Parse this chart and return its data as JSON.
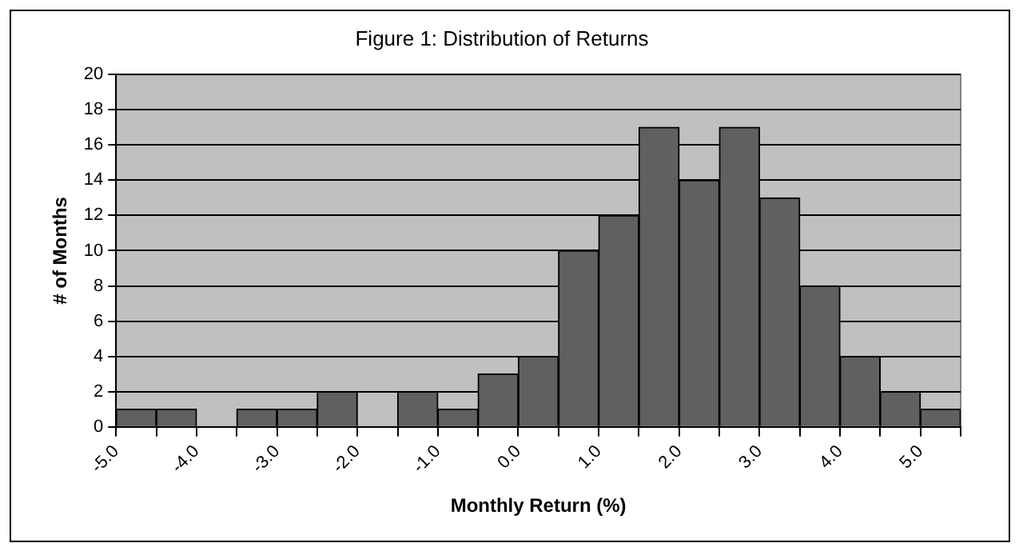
{
  "chart_data": {
    "type": "histogram",
    "title": "Figure 1: Distribution of Returns",
    "xlabel": "Monthly Return (%)",
    "ylabel": "# of Months",
    "bins": [
      -5.0,
      -4.5,
      -4.0,
      -3.5,
      -3.0,
      -2.5,
      -2.0,
      -1.5,
      -1.0,
      -0.5,
      0.0,
      0.5,
      1.0,
      1.5,
      2.0,
      2.5,
      3.0,
      3.5,
      4.0,
      4.5,
      5.0,
      5.5
    ],
    "values": [
      1,
      1,
      0,
      1,
      1,
      2,
      0,
      2,
      1,
      3,
      4,
      10,
      12,
      17,
      14,
      17,
      13,
      8,
      4,
      2,
      1
    ],
    "color": "#606060",
    "xlim": [
      -5.0,
      5.5
    ],
    "xticks": [
      {
        "value": -5,
        "label": "-5.0"
      },
      {
        "value": -4.5,
        "label": null
      },
      {
        "value": -4,
        "label": "-4.0"
      },
      {
        "value": -3.5,
        "label": null
      },
      {
        "value": -3,
        "label": "-3.0"
      },
      {
        "value": -2.5,
        "label": null
      },
      {
        "value": -2,
        "label": "-2.0"
      },
      {
        "value": -1.5,
        "label": null
      },
      {
        "value": -1,
        "label": "-1.0"
      },
      {
        "value": -0.5,
        "label": null
      },
      {
        "value": 0,
        "label": "0.0"
      },
      {
        "value": 0.5,
        "label": null
      },
      {
        "value": 1,
        "label": "1.0"
      },
      {
        "value": 1.5,
        "label": null
      },
      {
        "value": 2,
        "label": "2.0"
      },
      {
        "value": 2.5,
        "label": null
      },
      {
        "value": 3,
        "label": "3.0"
      },
      {
        "value": 3.5,
        "label": null
      },
      {
        "value": 4,
        "label": "4.0"
      },
      {
        "value": 4.5,
        "label": null
      },
      {
        "value": 5,
        "label": "5.0"
      },
      {
        "value": 5.5,
        "label": null
      }
    ],
    "ylim": [
      0,
      20
    ],
    "yticks": [
      0,
      2,
      4,
      6,
      8,
      10,
      12,
      14,
      16,
      18,
      20
    ],
    "grid": "y",
    "legend": false
  }
}
